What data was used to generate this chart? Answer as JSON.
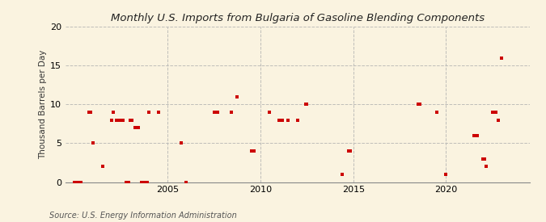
{
  "title": "Monthly U.S. Imports from Bulgaria of Gasoline Blending Components",
  "ylabel": "Thousand Barrels per Day",
  "source": "Source: U.S. Energy Information Administration",
  "background_color": "#faf3e0",
  "marker_color": "#cc0000",
  "grid_color": "#b0b0b0",
  "ylim": [
    0,
    20
  ],
  "yticks": [
    0,
    5,
    10,
    15,
    20
  ],
  "xticks": [
    2005,
    2010,
    2015,
    2020
  ],
  "xlim": [
    1999.5,
    2024.5
  ],
  "data_points": [
    [
      2000.0,
      0
    ],
    [
      2000.08,
      0
    ],
    [
      2000.17,
      0
    ],
    [
      2000.25,
      0
    ],
    [
      2000.33,
      0
    ],
    [
      2000.75,
      9
    ],
    [
      2000.83,
      9
    ],
    [
      2001.0,
      5
    ],
    [
      2001.5,
      2
    ],
    [
      2002.0,
      8
    ],
    [
      2002.08,
      9
    ],
    [
      2002.25,
      8
    ],
    [
      2002.33,
      8
    ],
    [
      2002.5,
      8
    ],
    [
      2002.58,
      8
    ],
    [
      2002.75,
      0
    ],
    [
      2002.83,
      0
    ],
    [
      2002.92,
      0
    ],
    [
      2003.0,
      8
    ],
    [
      2003.08,
      8
    ],
    [
      2003.25,
      7
    ],
    [
      2003.42,
      7
    ],
    [
      2003.58,
      0
    ],
    [
      2003.67,
      0
    ],
    [
      2003.75,
      0
    ],
    [
      2003.92,
      0
    ],
    [
      2004.0,
      9
    ],
    [
      2004.5,
      9
    ],
    [
      2005.75,
      5
    ],
    [
      2006.0,
      0
    ],
    [
      2007.5,
      9
    ],
    [
      2007.67,
      9
    ],
    [
      2008.42,
      9
    ],
    [
      2008.75,
      11
    ],
    [
      2009.5,
      4
    ],
    [
      2009.67,
      4
    ],
    [
      2010.5,
      9
    ],
    [
      2011.0,
      8
    ],
    [
      2011.17,
      8
    ],
    [
      2011.5,
      8
    ],
    [
      2012.0,
      8
    ],
    [
      2012.42,
      10
    ],
    [
      2012.5,
      10
    ],
    [
      2014.42,
      1
    ],
    [
      2014.75,
      4
    ],
    [
      2014.83,
      4
    ],
    [
      2018.5,
      10
    ],
    [
      2018.58,
      10
    ],
    [
      2019.5,
      9
    ],
    [
      2020.0,
      1
    ],
    [
      2021.5,
      6
    ],
    [
      2021.67,
      6
    ],
    [
      2022.0,
      3
    ],
    [
      2022.08,
      3
    ],
    [
      2022.17,
      2
    ],
    [
      2022.5,
      9
    ],
    [
      2022.67,
      9
    ],
    [
      2022.83,
      8
    ],
    [
      2023.0,
      16
    ]
  ]
}
